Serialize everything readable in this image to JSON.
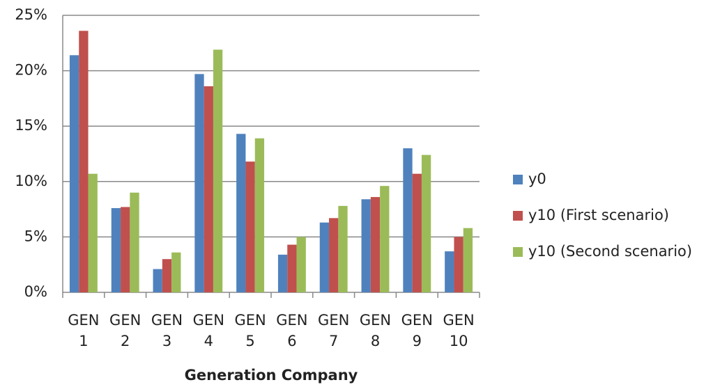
{
  "chart_data": {
    "type": "bar",
    "x_label": "Generation Company",
    "categories": [
      "GEN 1",
      "GEN 2",
      "GEN 3",
      "GEN 4",
      "GEN 5",
      "GEN 6",
      "GEN 7",
      "GEN 8",
      "GEN 9",
      "GEN 10"
    ],
    "series": [
      {
        "name": "y0",
        "color": "#4f81bd",
        "values": [
          21.4,
          7.6,
          2.1,
          19.7,
          14.3,
          3.4,
          6.3,
          8.4,
          13.0,
          3.7
        ]
      },
      {
        "name": "y10 (First scenario)",
        "color": "#c0504d",
        "values": [
          23.6,
          7.7,
          3.0,
          18.6,
          11.8,
          4.3,
          6.7,
          8.6,
          10.7,
          5.0
        ]
      },
      {
        "name": "y10 (Second scenario)",
        "color": "#9bbb59",
        "values": [
          10.7,
          9.0,
          3.6,
          21.9,
          13.9,
          5.0,
          7.8,
          9.6,
          12.4,
          5.8
        ]
      }
    ],
    "ylim": [
      0,
      25
    ],
    "yticks": [
      {
        "value": 0,
        "label": "0%"
      },
      {
        "value": 5,
        "label": "5%"
      },
      {
        "value": 10,
        "label": "10%"
      },
      {
        "value": 15,
        "label": "15%"
      },
      {
        "value": 20,
        "label": "20%"
      },
      {
        "value": 25,
        "label": "25%"
      }
    ],
    "grid": true,
    "legend": "right"
  }
}
